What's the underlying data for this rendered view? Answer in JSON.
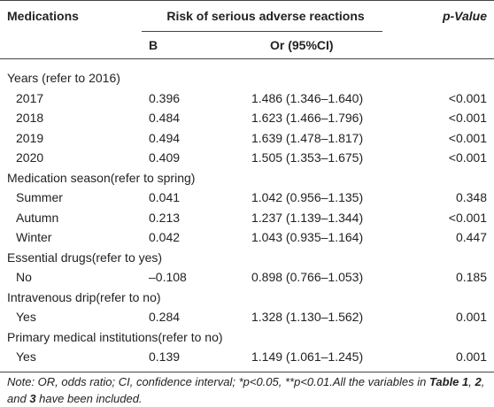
{
  "table": {
    "header": [
      "Medications",
      "Risk of serious adverse reactions",
      "p-Value"
    ],
    "subheader": [
      "B",
      "Or (95%CI)"
    ],
    "rows": [
      {
        "group": "Years (refer to 2016)"
      },
      {
        "label": "2017",
        "b": "0.396",
        "or": "1.486 (1.346–1.640)",
        "p": "<0.001"
      },
      {
        "label": "2018",
        "b": "0.484",
        "or": "1.623 (1.466–1.796)",
        "p": "<0.001"
      },
      {
        "label": "2019",
        "b": "0.494",
        "or": "1.639 (1.478–1.817)",
        "p": "<0.001"
      },
      {
        "label": "2020",
        "b": "0.409",
        "or": "1.505 (1.353–1.675)",
        "p": "<0.001"
      },
      {
        "group": "Medication season(refer to spring)"
      },
      {
        "label": "Summer",
        "b": "0.041",
        "or": "1.042 (0.956–1.135)",
        "p": "0.348"
      },
      {
        "label": "Autumn",
        "b": "0.213",
        "or": "1.237 (1.139–1.344)",
        "p": "<0.001"
      },
      {
        "label": "Winter",
        "b": "0.042",
        "or": "1.043 (0.935–1.164)",
        "p": "0.447"
      },
      {
        "group": "Essential drugs(refer to yes)"
      },
      {
        "label": "No",
        "b": "–0.108",
        "or": "0.898 (0.766–1.053)",
        "p": "0.185"
      },
      {
        "group": "Intravenous drip(refer to no)"
      },
      {
        "label": "Yes",
        "b": "0.284",
        "or": "1.328 (1.130–1.562)",
        "p": "0.001"
      },
      {
        "group": "Primary medical institutions(refer to no)"
      },
      {
        "label": "Yes",
        "b": "0.139",
        "or": "1.149 (1.061–1.245)",
        "p": "0.001"
      }
    ],
    "note": [
      "Note: OR, odds ratio; CI, confidence interval; *p˂0.05, **p˂0.01.All the variables in ",
      "Table 1",
      ", ",
      "2",
      ", and ",
      "3",
      " have been included."
    ]
  }
}
